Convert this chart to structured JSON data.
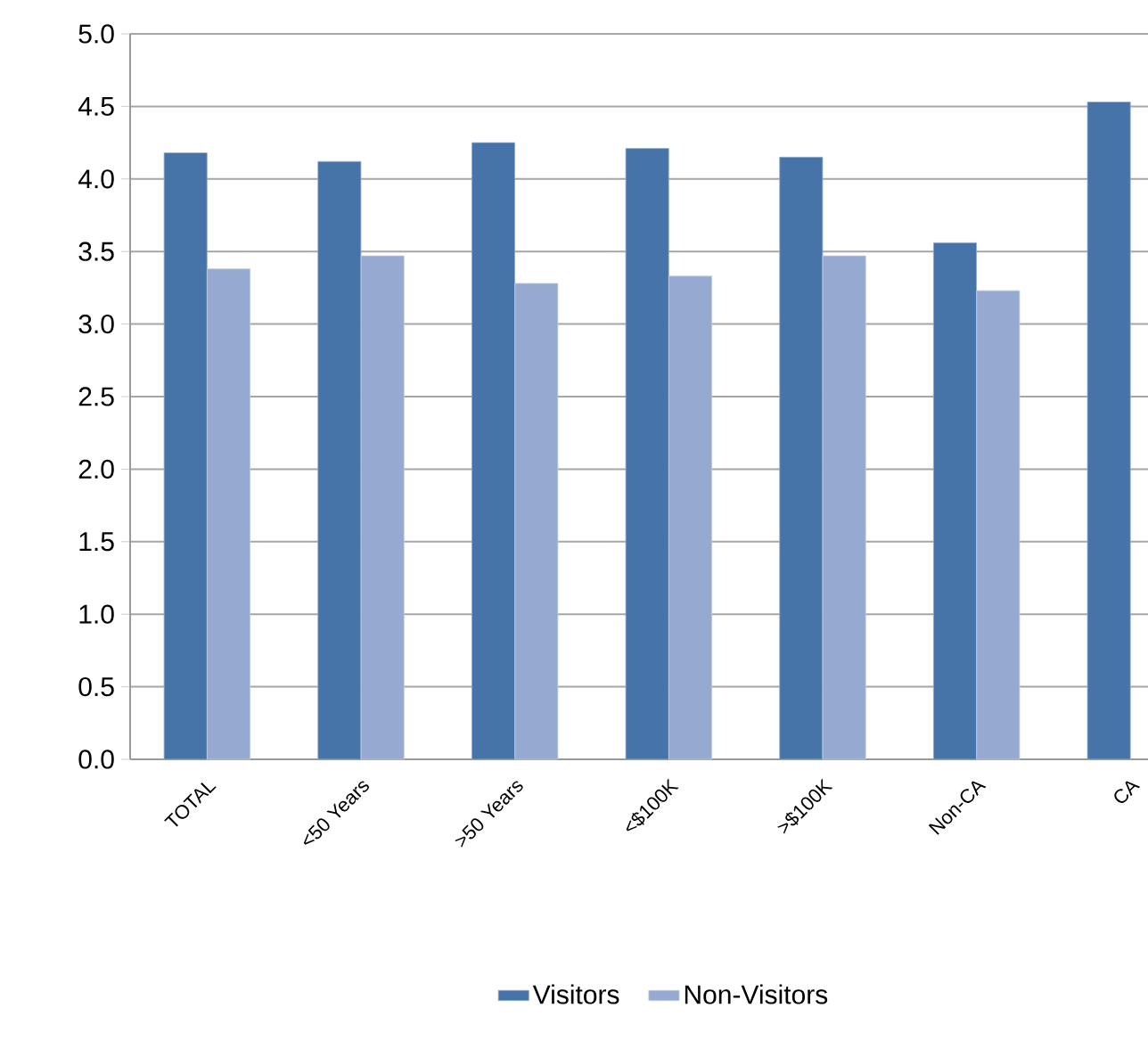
{
  "chart_data": {
    "type": "bar",
    "categories": [
      "TOTAL",
      "<50 Years",
      ">50 Years",
      "<$100K",
      ">$100K",
      "Non-CA",
      "CA"
    ],
    "series": [
      {
        "name": "Visitors",
        "color": "#4674a8",
        "values": [
          4.18,
          4.12,
          4.25,
          4.21,
          4.15,
          3.56,
          4.53
        ]
      },
      {
        "name": "Non-Visitors",
        "color": "#95a9d1",
        "values": [
          3.38,
          3.47,
          3.28,
          3.33,
          3.47,
          3.23,
          null
        ]
      }
    ],
    "ylim": [
      0,
      5
    ],
    "yticks": [
      {
        "value": 0,
        "label": "0.0"
      },
      {
        "value": 0.5,
        "label": "0.5"
      },
      {
        "value": 1,
        "label": "1.0"
      },
      {
        "value": 1.5,
        "label": "1.5"
      },
      {
        "value": 2,
        "label": "2.0"
      },
      {
        "value": 2.5,
        "label": "2.5"
      },
      {
        "value": 3,
        "label": "3.0"
      },
      {
        "value": 3.5,
        "label": "3.5"
      },
      {
        "value": 4,
        "label": "4.0"
      },
      {
        "value": 4.5,
        "label": "4.5"
      },
      {
        "value": 5,
        "label": "5.0"
      }
    ],
    "grid": "y",
    "legend": "bottom"
  }
}
